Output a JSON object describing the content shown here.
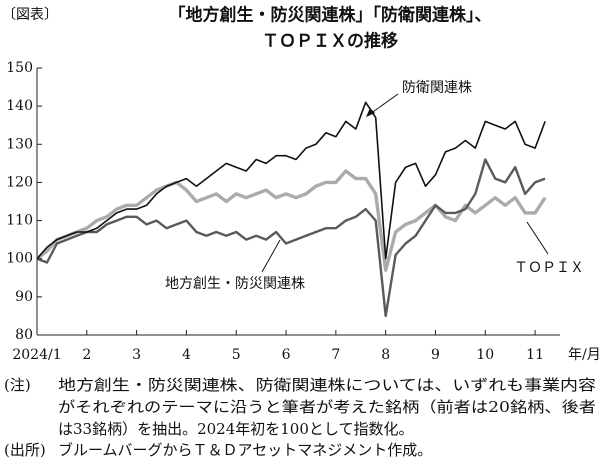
{
  "chart_data": {
    "type": "line",
    "figure_label": "〔図表〕",
    "title": [
      "「地方創生・防災関連株」「防衛関連株」、",
      "ＴＯＰＩＸの推移"
    ],
    "x_label": "年/月",
    "x": [
      1,
      1.2,
      1.4,
      1.6,
      1.8,
      2,
      2.2,
      2.4,
      2.6,
      2.8,
      3,
      3.2,
      3.4,
      3.6,
      3.8,
      4,
      4.2,
      4.4,
      4.6,
      4.8,
      5,
      5.2,
      5.4,
      5.6,
      5.8,
      6,
      6.2,
      6.4,
      6.6,
      6.8,
      7,
      7.2,
      7.4,
      7.6,
      7.8,
      8,
      8.2,
      8.4,
      8.6,
      8.8,
      9,
      9.2,
      9.4,
      9.6,
      9.8,
      10,
      10.2,
      10.4,
      10.6,
      10.8,
      11,
      11.2
    ],
    "series": [
      {
        "name": "防衛関連株",
        "color": "#111111",
        "width": 1.6,
        "values": [
          100,
          103,
          105,
          106,
          107,
          107,
          108,
          110,
          112,
          113,
          113,
          114,
          117,
          119,
          120,
          121,
          119,
          121,
          123,
          125,
          124,
          123,
          126,
          125,
          127,
          127,
          126,
          129,
          130,
          133,
          132,
          136,
          134,
          141,
          137,
          100,
          120,
          124,
          125,
          119,
          122,
          128,
          129,
          131,
          129,
          136,
          135,
          134,
          136,
          130,
          129,
          136
        ]
      },
      {
        "name": "地方創生・防災関連株",
        "color": "#5a5a5a",
        "width": 2.4,
        "values": [
          100,
          99,
          104,
          105,
          106,
          107,
          107,
          109,
          110,
          111,
          111,
          109,
          110,
          108,
          109,
          110,
          107,
          106,
          107,
          106,
          107,
          105,
          106,
          105,
          107,
          104,
          105,
          106,
          107,
          108,
          108,
          110,
          111,
          113,
          110,
          85,
          101,
          104,
          106,
          110,
          114,
          112,
          112,
          113,
          117,
          126,
          121,
          120,
          124,
          117,
          120,
          121
        ]
      },
      {
        "name": "ＴＯＰＩＸ",
        "color": "#ababab",
        "width": 3.4,
        "values": [
          100,
          102,
          105,
          106,
          107,
          108,
          110,
          111,
          113,
          114,
          114,
          116,
          118,
          119,
          120,
          118,
          115,
          116,
          117,
          115,
          117,
          116,
          117,
          118,
          116,
          117,
          116,
          117,
          119,
          120,
          120,
          123,
          121,
          121,
          117,
          97,
          107,
          109,
          110,
          112,
          114,
          111,
          110,
          114,
          112,
          114,
          116,
          114,
          116,
          112,
          112,
          116
        ]
      }
    ],
    "xlim": [
      1,
      11.5
    ],
    "xticks": [
      {
        "value": 1,
        "label": "2024/1"
      },
      2,
      3,
      4,
      5,
      6,
      7,
      8,
      9,
      10,
      11
    ],
    "ylim": [
      80,
      150
    ],
    "yticks": [
      80,
      90,
      100,
      110,
      120,
      130,
      140,
      150
    ],
    "grid": false,
    "notes_label": "(注)",
    "notes": [
      "地方創生・防災関連株、防衛関連株については、いずれも事業内容",
      "がそれぞれのテーマに沿うと筆者が考えた銘柄（前者は20銘柄、後者",
      "は33銘柄）を抽出。2024年初を100として指数化。"
    ],
    "source_label": "(出所)",
    "source": "ブルームバーグからＴ＆Ｄアセットマネジメント作成。"
  }
}
